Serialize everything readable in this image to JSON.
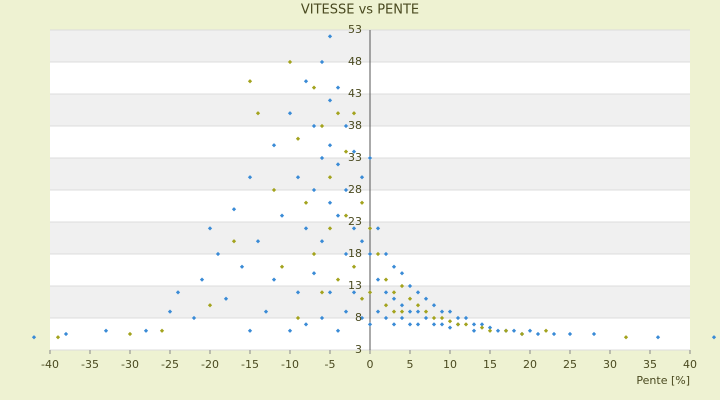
{
  "chart_data": {
    "type": "scatter",
    "title": "VITESSE vs PENTE",
    "x_label": "Pente [%]",
    "xlim": [
      -40,
      40
    ],
    "xticks": [
      -40,
      -35,
      -30,
      -25,
      -20,
      -15,
      -10,
      -5,
      0,
      5,
      10,
      15,
      20,
      25,
      30,
      35,
      40
    ],
    "ylim": [
      3,
      53
    ],
    "yticks": [
      3,
      8,
      13,
      18,
      23,
      28,
      33,
      38,
      43,
      48,
      53
    ],
    "grid": true,
    "series": [
      {
        "color": "#3a8bd6",
        "x": [
          -42,
          -38,
          -33,
          -28,
          -25,
          -24,
          -22,
          -21,
          -20,
          -19,
          -18,
          -17,
          -16,
          -15,
          -15,
          -14,
          -13,
          -12,
          -12,
          -11,
          -10,
          -10,
          -9,
          -9,
          -8,
          -8,
          -8,
          -7,
          -7,
          -7,
          -6,
          -6,
          -6,
          -6,
          -5,
          -5,
          -5,
          -5,
          -5,
          -4,
          -4,
          -4,
          -4,
          -3,
          -3,
          -3,
          -3,
          -2,
          -2,
          -2,
          -1,
          -1,
          -1,
          0,
          0,
          0,
          1,
          1,
          1,
          2,
          2,
          2,
          3,
          3,
          3,
          4,
          4,
          4,
          5,
          5,
          5,
          6,
          6,
          6,
          7,
          7,
          8,
          8,
          9,
          9,
          10,
          10,
          11,
          11,
          12,
          13,
          13,
          14,
          15,
          16,
          17,
          18,
          19,
          20,
          21,
          23,
          25,
          28,
          36,
          43
        ],
        "values": [
          5,
          5.5,
          6,
          6,
          9,
          12,
          8,
          14,
          22,
          18,
          11,
          25,
          16,
          6,
          30,
          20,
          9,
          35,
          14,
          24,
          40,
          6,
          30,
          12,
          45,
          22,
          7,
          38,
          28,
          15,
          48,
          33,
          20,
          8,
          52,
          42,
          35,
          26,
          12,
          44,
          32,
          24,
          6,
          38,
          28,
          18,
          9,
          34,
          22,
          12,
          30,
          20,
          8,
          33,
          18,
          7,
          22,
          14,
          9,
          18,
          12,
          8,
          16,
          11,
          7,
          15,
          10,
          8,
          13,
          9,
          7,
          12,
          9,
          7,
          11,
          8,
          10,
          7,
          9,
          7,
          9,
          6.5,
          8,
          7,
          8,
          7,
          6,
          7,
          6.5,
          6,
          6,
          6,
          5.5,
          6,
          5.5,
          5.5,
          5.5,
          5.5,
          5,
          5
        ]
      },
      {
        "color": "#a3a31e",
        "x": [
          -39,
          -30,
          -26,
          -20,
          -17,
          -15,
          -14,
          -12,
          -11,
          -10,
          -9,
          -9,
          -8,
          -7,
          -7,
          -6,
          -6,
          -5,
          -5,
          -4,
          -4,
          -3,
          -3,
          -2,
          -2,
          -1,
          -1,
          0,
          0,
          1,
          2,
          2,
          3,
          3,
          4,
          4,
          5,
          6,
          7,
          8,
          9,
          10,
          11,
          12,
          14,
          15,
          17,
          19,
          22,
          32
        ],
        "values": [
          5,
          5.5,
          6,
          10,
          20,
          45,
          40,
          28,
          16,
          48,
          36,
          8,
          26,
          44,
          18,
          38,
          12,
          30,
          22,
          40,
          14,
          34,
          24,
          40,
          16,
          26,
          11,
          22,
          12,
          18,
          14,
          10,
          12,
          9,
          13,
          9,
          11,
          10,
          9,
          8,
          8,
          7.5,
          7,
          7,
          6.5,
          6,
          6,
          5.5,
          6,
          5
        ]
      }
    ]
  }
}
